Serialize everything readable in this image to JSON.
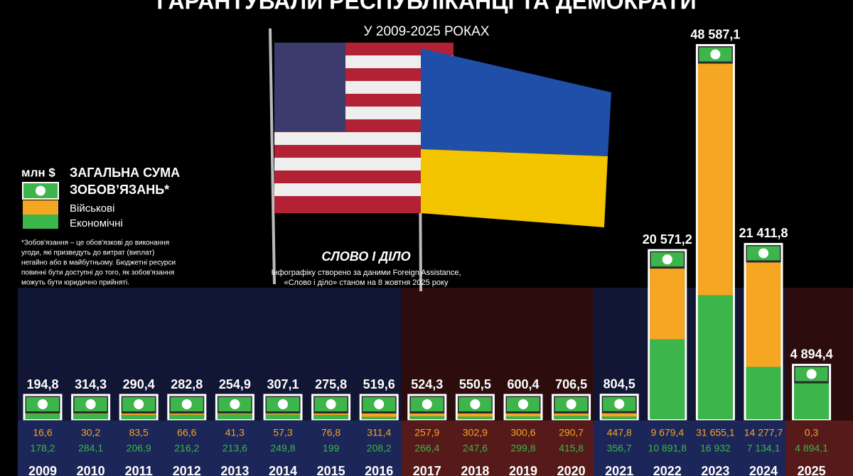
{
  "chart_data": {
    "type": "bar",
    "stacked": true,
    "title": "ГАРАНТУВАЛИ РЕСПУБЛІКАНЦІ ТА ДЕМОКРАТИ",
    "subtitle": "У 2009-2025 РОКАХ",
    "unit": "млн $",
    "legend_title": [
      "ЗАГАЛЬНА СУМА",
      "ЗОБОВ’ЯЗАНЬ*"
    ],
    "footnote": [
      "*Зобов'язання – це обов'язкові до виконання",
      "угоди, які призведуть до витрат (виплат)",
      "негайно або в майбутньому. Бюджетні ресурси",
      "повинні бути доступні до того, як зобов'язання",
      "можуть бути юридично прийняті."
    ],
    "logo": "СЛОВО І ДІЛО",
    "source": [
      "Інфографіку створено за даними Foreign Assistance,",
      "«Слово і діло» станом на 8 жовтня 2025 року"
    ],
    "categories": [
      "2009",
      "2010",
      "2011",
      "2012",
      "2013",
      "2014",
      "2015",
      "2016",
      "2017",
      "2018",
      "2019",
      "2020",
      "2021",
      "2022",
      "2023",
      "2024",
      "2025"
    ],
    "totals": {
      "values": [
        194.8,
        314.3,
        290.4,
        282.8,
        254.9,
        307.1,
        275.8,
        519.6,
        524.3,
        550.5,
        600.4,
        706.5,
        804.5,
        20571.2,
        48587.1,
        21411.8,
        4894.4
      ],
      "value_labels": [
        "194,8",
        "314,3",
        "290,4",
        "282,8",
        "254,9",
        "307,1",
        "275,8",
        "519,6",
        "524,3",
        "550,5",
        "600,4",
        "706,5",
        "804,5",
        "20 571,2",
        "48 587,1",
        "21 411,8",
        "4 894,4"
      ]
    },
    "series": [
      {
        "name": "Військові",
        "color": "#f5a623",
        "values": [
          16.6,
          30.2,
          83.5,
          66.6,
          41.3,
          57.3,
          76.8,
          311.4,
          257.9,
          302.9,
          300.6,
          290.7,
          447.8,
          9679.4,
          31655.1,
          14277.7,
          0.3
        ],
        "value_labels": [
          "16,6",
          "30,2",
          "83,5",
          "66,6",
          "41,3",
          "57,3",
          "76,8",
          "311,4",
          "257,9",
          "302,9",
          "300,6",
          "290,7",
          "447,8",
          "9 679,4",
          "31 655,1",
          "14 277,7",
          "0,3"
        ]
      },
      {
        "name": "Економічні",
        "color": "#3cb54a",
        "values": [
          178.2,
          284.1,
          206.9,
          216.2,
          213.6,
          249.8,
          199,
          208.2,
          266.4,
          247.6,
          299.8,
          415.8,
          356.7,
          10891.8,
          16932,
          7134.1,
          4894.1
        ],
        "value_labels": [
          "178,2",
          "284,1",
          "206,9",
          "216,2",
          "213,6",
          "249,8",
          "199",
          "208,2",
          "266,4",
          "247,6",
          "299,8",
          "415,8",
          "356,7",
          "10 891,8",
          "16 932",
          "7 134,1",
          "4 894,1"
        ]
      }
    ]
  }
}
